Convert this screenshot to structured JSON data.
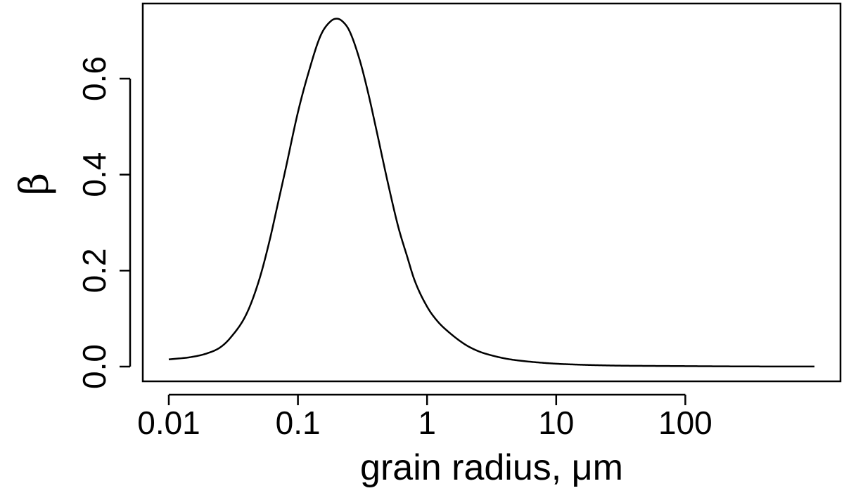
{
  "chart_data": {
    "type": "line",
    "title": "",
    "xlabel": "grain radius, μm",
    "ylabel": "β",
    "x_scale": "log",
    "xlim": [
      0.01,
      1000
    ],
    "ylim": [
      0,
      0.725
    ],
    "x_ticks": [
      0.01,
      0.1,
      1,
      10,
      100
    ],
    "x_tick_labels": [
      "0.01",
      "0.1",
      "1",
      "10",
      "100"
    ],
    "y_ticks": [
      0.0,
      0.2,
      0.4,
      0.6
    ],
    "y_tick_labels": [
      "0.0",
      "0.2",
      "0.4",
      "0.6"
    ],
    "grid": false,
    "legend": "none",
    "line_color": "#000000",
    "series": [
      {
        "x": [
          0.01,
          0.015,
          0.02,
          0.025,
          0.03,
          0.04,
          0.05,
          0.06,
          0.07,
          0.08,
          0.1,
          0.12,
          0.15,
          0.18,
          0.2,
          0.22,
          0.25,
          0.3,
          0.35,
          0.4,
          0.5,
          0.6,
          0.7,
          0.8,
          1,
          1.2,
          1.5,
          2,
          2.5,
          3,
          4,
          5,
          7,
          10,
          15,
          20,
          30,
          50,
          100,
          200,
          500,
          1000
        ],
        "y": [
          0.015,
          0.02,
          0.028,
          0.04,
          0.06,
          0.11,
          0.18,
          0.26,
          0.34,
          0.41,
          0.53,
          0.61,
          0.69,
          0.72,
          0.725,
          0.72,
          0.7,
          0.64,
          0.57,
          0.5,
          0.38,
          0.29,
          0.23,
          0.18,
          0.125,
          0.095,
          0.07,
          0.045,
          0.032,
          0.025,
          0.017,
          0.013,
          0.009,
          0.006,
          0.004,
          0.003,
          0.002,
          0.0015,
          0.001,
          0.0005,
          0.0002,
          0.0001
        ]
      }
    ]
  }
}
